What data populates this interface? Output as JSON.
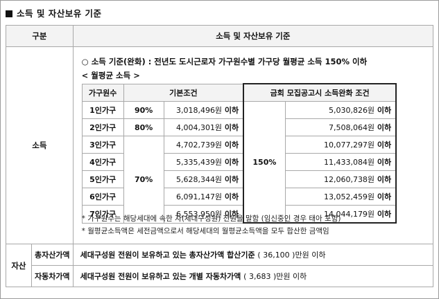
{
  "heading": "소득 및 자산보유 기준",
  "header": {
    "col1": "구분",
    "col2": "소득 및 자산보유 기준"
  },
  "income": {
    "label": "소득",
    "standard_circle": "○",
    "standard_text": "소득 기준(완화) :  전년도 도시근로자 가구원수별 가구당 월평균 소득 150% 이하",
    "subheading": "< 월평균 소득 >",
    "table": {
      "col_household": "가구원수",
      "col_basic": "기본조건",
      "col_relaxed": "금회 모집공고시 소득완화 조건",
      "relaxed_pct": "150%",
      "suffix": "이하",
      "rows": [
        {
          "household": "1인가구",
          "pct": "90%",
          "basic": "3,018,496원",
          "relaxed": "5,030,826원"
        },
        {
          "household": "2인가구",
          "pct": "80%",
          "basic": "4,004,301원",
          "relaxed": "7,508,064원"
        },
        {
          "household": "3인가구",
          "pct": "70%",
          "basic": "4,702,739원",
          "relaxed": "10,077,297원"
        },
        {
          "household": "4인가구",
          "pct": "",
          "basic": "5,335,439원",
          "relaxed": "11,433,084원"
        },
        {
          "household": "5인가구",
          "pct": "",
          "basic": "5,628,344원",
          "relaxed": "12,060,738원"
        },
        {
          "household": "6인가구",
          "pct": "",
          "basic": "6,091,147원",
          "relaxed": "13,052,459원"
        },
        {
          "household": "7인가구",
          "pct": "",
          "basic": "6,553,950원",
          "relaxed": "14,044,179원"
        }
      ]
    },
    "note1": "* 가구원수는 해당세대에 속한 자(세대구성원) 전원을 말함 (임신중인 경우 태아 포함)",
    "note2": "* 월평균소득액은 세전금액으로서 해당세대의 월평균소득액을 모두 합산한 금액임"
  },
  "assets": {
    "label": "자산",
    "total_label": "총자산가액",
    "total_text_a": "세대구성원 전원이 보유하고 있는 총자산가액 합산기준",
    "total_text_b": "( 36,100 )만원 이하",
    "car_label": "자동차가액",
    "car_text_a": "세대구성원 전원이 보유하고 있는 개별 자동차가액",
    "car_text_b": "( 3,683 )만원 이하"
  }
}
